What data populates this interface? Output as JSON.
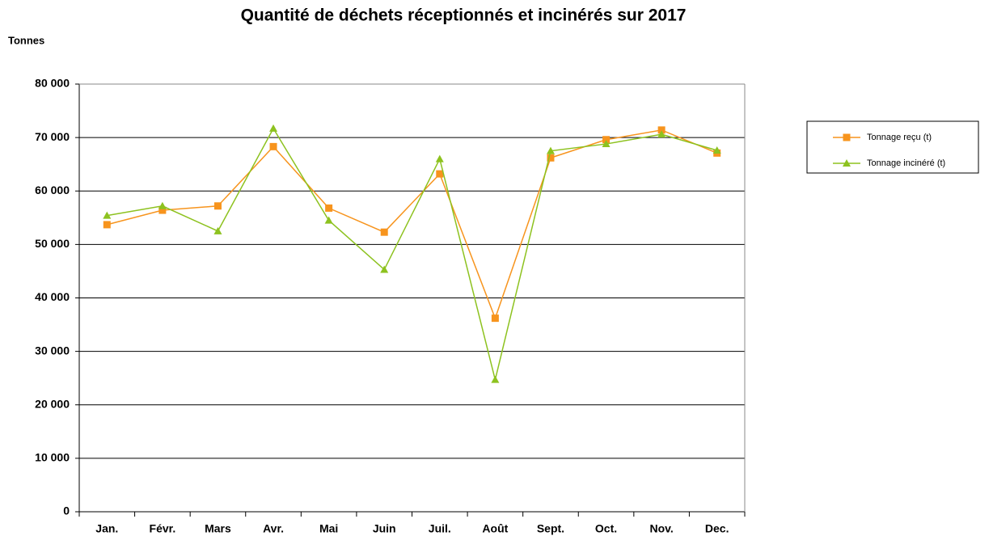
{
  "chart_data": {
    "type": "line",
    "title": "Quantité de déchets réceptionnés et incinérés sur 2017",
    "y_label": "Tonnes",
    "categories": [
      "Jan.",
      "Févr.",
      "Mars",
      "Avr.",
      "Mai",
      "Juin",
      "Juil.",
      "Août",
      "Sept.",
      "Oct.",
      "Nov.",
      "Dec."
    ],
    "series": [
      {
        "name": "Tonnage reçu (t)",
        "color": "#f7941d",
        "marker": "square",
        "values": [
          53700,
          56400,
          57200,
          68300,
          56800,
          52300,
          63200,
          36200,
          66200,
          69600,
          71400,
          67100
        ]
      },
      {
        "name": "Tonnage incinéré (t)",
        "color": "#8dc21f",
        "marker": "triangle",
        "values": [
          55400,
          57200,
          52500,
          71700,
          54500,
          45300,
          66000,
          24700,
          67500,
          68800,
          70600,
          67600
        ]
      }
    ],
    "ylim": [
      0,
      80000
    ],
    "yticks": [
      0,
      {
        "value": 10000,
        "label": "10 000"
      },
      {
        "value": 20000,
        "label": "20 000"
      },
      {
        "value": 30000,
        "label": "30 000"
      },
      {
        "value": 40000,
        "label": "40 000"
      },
      {
        "value": 50000,
        "label": "50 000"
      },
      {
        "value": 60000,
        "label": "60 000"
      },
      {
        "value": 70000,
        "label": "70 000"
      },
      {
        "value": 80000,
        "label": "80 000"
      }
    ],
    "grid": true,
    "legend": "right"
  }
}
